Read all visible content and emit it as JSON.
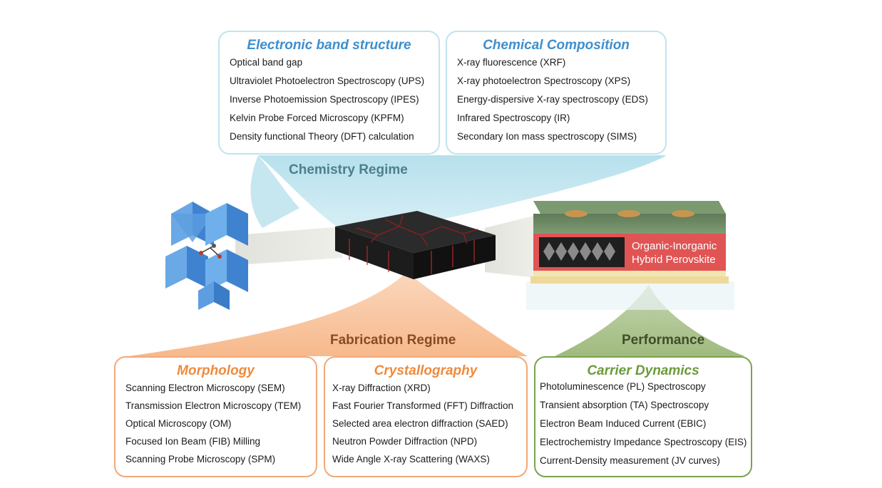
{
  "chemistry": {
    "regime_label": "Chemistry Regime",
    "band": {
      "title": "Electronic band structure",
      "items": [
        "Optical band gap",
        "Ultraviolet  Photoelectron  Spectroscopy (UPS)",
        "Inverse  Photoemission  Spectroscopy (IPES)",
        "Kelvin Probe Forced Microscopy (KPFM)",
        "Density functional Theory (DFT) calculation"
      ]
    },
    "composition": {
      "title": "Chemical Composition",
      "items": [
        "X-ray fluorescence (XRF)",
        "X-ray photoelectron  Spectroscopy (XPS)",
        "Energy-dispersive  X-ray spectroscopy (EDS)",
        "Infrared Spectroscopy (IR)",
        "Secondary Ion mass spectroscopy (SIMS)"
      ]
    }
  },
  "fabrication": {
    "regime_label": "Fabrication Regime",
    "morphology": {
      "title": "Morphology",
      "items": [
        "Scanning Electron Microscopy (SEM)",
        "Transmission  Electron Microscopy (TEM)",
        "Optical Microscopy (OM)",
        "Focused Ion Beam  (FIB) Milling",
        "Scanning Probe Microscopy (SPM)"
      ]
    },
    "crystallography": {
      "title": "Crystallography",
      "items": [
        "X-ray Diffraction (XRD)",
        "Fast Fourier Transformed  (FFT) Diffraction",
        "Selected area electron diffraction (SAED)",
        "Neutron  Powder  Diffraction (NPD)",
        "Wide Angle  X-ray Scattering  (WAXS)"
      ]
    }
  },
  "performance": {
    "regime_label": "Performance",
    "carrier": {
      "title": "Carrier Dynamics",
      "items": [
        "Photoluminescence  (PL) Spectroscopy",
        "Transient absorption  (TA) Spectroscopy",
        "Electron Beam  Induced Current (EBIC)",
        "Electrochemistry Impedance Spectroscopy (EIS)",
        "Current-Density measurement  (JV curves)"
      ]
    }
  },
  "device": {
    "label_line1": "Organic-Inorganic",
    "label_line2": "Hybrid Perovskite"
  },
  "colors": {
    "chemistry": "#a9dbe9",
    "fabrication": "#f7b98c",
    "performance": "#a9c08a",
    "perovskite": "#4a90d9"
  }
}
